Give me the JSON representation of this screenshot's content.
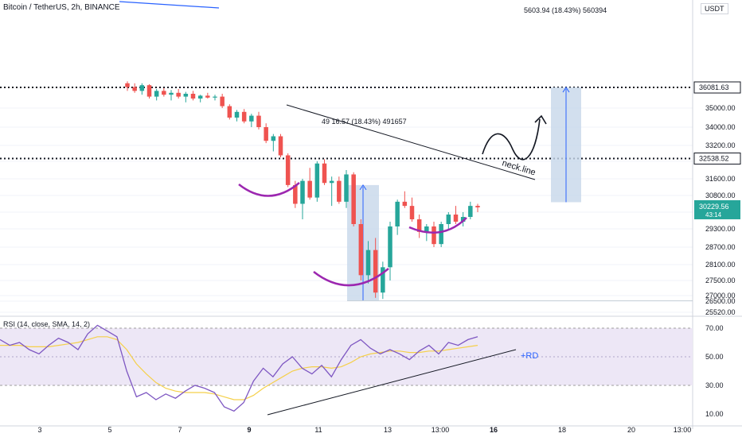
{
  "header": {
    "title": "Bitcoin / TetherUS, 2h, BINANCE",
    "currency": "USDT"
  },
  "colors": {
    "up": "#26a69a",
    "down": "#ef5350",
    "rsi_line": "#7e57c2",
    "rsi_sma": "#f5d04a",
    "rsi_band": "#ede7f6",
    "measure_fill": "#c7d7ea",
    "measure_line": "#2962ff",
    "hs_curve": "#9c27b0",
    "trend_line": "#2962ff",
    "last_price_bg": "#26a69a"
  },
  "chart_data": [
    {
      "type": "candlestick",
      "title": "Bitcoin / TetherUS, 2h, BINANCE",
      "x_ticks": [
        "3",
        "5",
        "7",
        "9",
        "11",
        "13",
        "13:00",
        "16",
        "18",
        "20",
        "13:00"
      ],
      "y_ticks": [
        25520,
        26500,
        27000,
        27500,
        28100,
        28700,
        29300,
        30000,
        30800,
        31600,
        32400,
        33200,
        34000,
        35000
      ],
      "ylim": [
        25300,
        36700
      ],
      "series": [
        {
          "x": 0,
          "open": 36300,
          "high": 36400,
          "low": 35900,
          "close": 36100
        },
        {
          "x": 1,
          "open": 36100,
          "high": 36300,
          "low": 35800,
          "close": 35900
        },
        {
          "x": 2,
          "open": 35900,
          "high": 36300,
          "low": 35700,
          "close": 36200
        },
        {
          "x": 3,
          "open": 36200,
          "high": 36250,
          "low": 35500,
          "close": 35600
        },
        {
          "x": 4,
          "open": 35600,
          "high": 36000,
          "low": 35400,
          "close": 35900
        },
        {
          "x": 5,
          "open": 35900,
          "high": 36050,
          "low": 35600,
          "close": 35700
        },
        {
          "x": 6,
          "open": 35700,
          "high": 35950,
          "low": 35400,
          "close": 35800
        },
        {
          "x": 7,
          "open": 35800,
          "high": 36000,
          "low": 35500,
          "close": 35600
        },
        {
          "x": 8,
          "open": 35600,
          "high": 35850,
          "low": 35300,
          "close": 35750
        },
        {
          "x": 9,
          "open": 35750,
          "high": 35900,
          "low": 35400,
          "close": 35500
        },
        {
          "x": 10,
          "open": 35500,
          "high": 35700,
          "low": 35300,
          "close": 35650
        },
        {
          "x": 11,
          "open": 35650,
          "high": 35800,
          "low": 35500,
          "close": 35550
        },
        {
          "x": 12,
          "open": 35550,
          "high": 35700,
          "low": 35400,
          "close": 35600
        },
        {
          "x": 13,
          "open": 35600,
          "high": 35750,
          "low": 35000,
          "close": 35100
        },
        {
          "x": 14,
          "open": 35100,
          "high": 35200,
          "low": 34400,
          "close": 34500
        },
        {
          "x": 15,
          "open": 34500,
          "high": 34900,
          "low": 34300,
          "close": 34800
        },
        {
          "x": 16,
          "open": 34800,
          "high": 34950,
          "low": 34200,
          "close": 34300
        },
        {
          "x": 17,
          "open": 34300,
          "high": 34700,
          "low": 34000,
          "close": 34600
        },
        {
          "x": 18,
          "open": 34600,
          "high": 34800,
          "low": 33900,
          "close": 34000
        },
        {
          "x": 19,
          "open": 34000,
          "high": 34200,
          "low": 33300,
          "close": 33400
        },
        {
          "x": 20,
          "open": 33400,
          "high": 33700,
          "low": 32900,
          "close": 33600
        },
        {
          "x": 21,
          "open": 33600,
          "high": 33700,
          "low": 32600,
          "close": 32700
        },
        {
          "x": 22,
          "open": 32700,
          "high": 32800,
          "low": 31200,
          "close": 31300
        },
        {
          "x": 23,
          "open": 31300,
          "high": 31500,
          "low": 30200,
          "close": 30400
        },
        {
          "x": 24,
          "open": 30400,
          "high": 31600,
          "low": 29700,
          "close": 31500
        },
        {
          "x": 25,
          "open": 31500,
          "high": 32100,
          "low": 30600,
          "close": 30700
        },
        {
          "x": 26,
          "open": 30700,
          "high": 32400,
          "low": 30500,
          "close": 32300
        },
        {
          "x": 27,
          "open": 32300,
          "high": 32500,
          "low": 31300,
          "close": 31400
        },
        {
          "x": 28,
          "open": 31400,
          "high": 31700,
          "low": 30300,
          "close": 31500
        },
        {
          "x": 29,
          "open": 31500,
          "high": 31700,
          "low": 30400,
          "close": 30500
        },
        {
          "x": 30,
          "open": 30500,
          "high": 32000,
          "low": 30200,
          "close": 31800
        },
        {
          "x": 31,
          "open": 31800,
          "high": 31900,
          "low": 29400,
          "close": 29500
        },
        {
          "x": 32,
          "open": 29500,
          "high": 29700,
          "low": 27500,
          "close": 27700
        },
        {
          "x": 33,
          "open": 27700,
          "high": 28900,
          "low": 27400,
          "close": 28600
        },
        {
          "x": 34,
          "open": 28600,
          "high": 29000,
          "low": 26800,
          "close": 27100
        },
        {
          "x": 35,
          "open": 27100,
          "high": 28200,
          "low": 26700,
          "close": 28000
        },
        {
          "x": 36,
          "open": 28000,
          "high": 29600,
          "low": 27500,
          "close": 29400
        },
        {
          "x": 37,
          "open": 29400,
          "high": 30600,
          "low": 29100,
          "close": 30500
        },
        {
          "x": 38,
          "open": 30500,
          "high": 31000,
          "low": 30200,
          "close": 30300
        },
        {
          "x": 39,
          "open": 30300,
          "high": 30700,
          "low": 29600,
          "close": 29700
        },
        {
          "x": 40,
          "open": 29700,
          "high": 29900,
          "low": 29000,
          "close": 29200
        },
        {
          "x": 41,
          "open": 29200,
          "high": 29500,
          "low": 28900,
          "close": 29400
        },
        {
          "x": 42,
          "open": 29400,
          "high": 29600,
          "low": 28700,
          "close": 28800
        },
        {
          "x": 43,
          "open": 28800,
          "high": 29600,
          "low": 28700,
          "close": 29500
        },
        {
          "x": 44,
          "open": 29500,
          "high": 30000,
          "low": 29300,
          "close": 29900
        },
        {
          "x": 45,
          "open": 29900,
          "high": 30300,
          "low": 29500,
          "close": 29600
        },
        {
          "x": 46,
          "open": 29600,
          "high": 30000,
          "low": 29400,
          "close": 29800
        },
        {
          "x": 47,
          "open": 29800,
          "high": 30500,
          "low": 29700,
          "close": 30300
        },
        {
          "x": 48,
          "open": 30300,
          "high": 30400,
          "low": 30000,
          "close": 30229.56
        }
      ],
      "horizontal_levels": [
        {
          "value": 36081.63,
          "label": "36081.63"
        },
        {
          "value": 32538.52,
          "label": "32538.52"
        }
      ],
      "last_price": {
        "value": 30229.56,
        "label": "30229.56",
        "countdown": "43:14"
      },
      "annotations": [
        {
          "text": "49 16.57 (18.43%) 491657"
        },
        {
          "text": "5603.94 (18.43%) 560394"
        },
        {
          "text": "neck.line"
        }
      ]
    },
    {
      "type": "line",
      "title": "RSI (14, close, SMA, 14, 2)",
      "y_ticks": [
        10,
        30,
        50,
        70
      ],
      "ylim": [
        5,
        75
      ],
      "band": [
        30,
        70
      ],
      "series": [
        {
          "name": "RSI",
          "values": [
            62,
            58,
            60,
            55,
            52,
            58,
            63,
            60,
            55,
            66,
            72,
            68,
            64,
            40,
            22,
            25,
            20,
            24,
            21,
            26,
            30,
            28,
            25,
            15,
            12,
            18,
            33,
            42,
            36,
            45,
            50,
            42,
            38,
            44,
            36,
            48,
            58,
            62,
            56,
            52,
            55,
            52,
            48,
            54,
            58,
            52,
            60,
            58,
            62,
            64
          ]
        },
        {
          "name": "SMA",
          "values": [
            58,
            58,
            58,
            57,
            57,
            57,
            58,
            59,
            60,
            62,
            64,
            64,
            62,
            55,
            45,
            38,
            32,
            28,
            26,
            25,
            25,
            25,
            24,
            22,
            20,
            20,
            23,
            28,
            32,
            36,
            40,
            42,
            43,
            43,
            42,
            43,
            46,
            50,
            52,
            53,
            54,
            54,
            53,
            53,
            54,
            54,
            55,
            56,
            57,
            58
          ]
        }
      ],
      "annotations": [
        {
          "text": "+RD"
        }
      ]
    }
  ]
}
